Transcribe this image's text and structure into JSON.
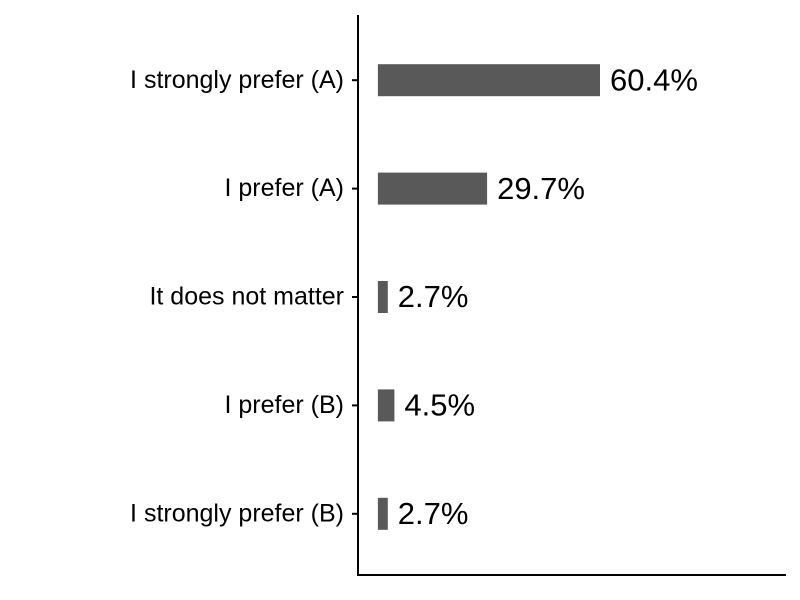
{
  "chart_data": {
    "type": "bar",
    "orientation": "horizontal",
    "categories": [
      "I strongly prefer (A)",
      "I prefer (A)",
      "It does not matter",
      "I prefer (B)",
      "I strongly prefer (B)"
    ],
    "values": [
      60.4,
      29.7,
      2.7,
      4.5,
      2.7
    ],
    "value_labels": [
      "60.4%",
      "29.7%",
      "2.7%",
      "4.5%",
      "2.7%"
    ],
    "color": "#595959",
    "xlim": [
      -5.4,
      110.7
    ]
  }
}
